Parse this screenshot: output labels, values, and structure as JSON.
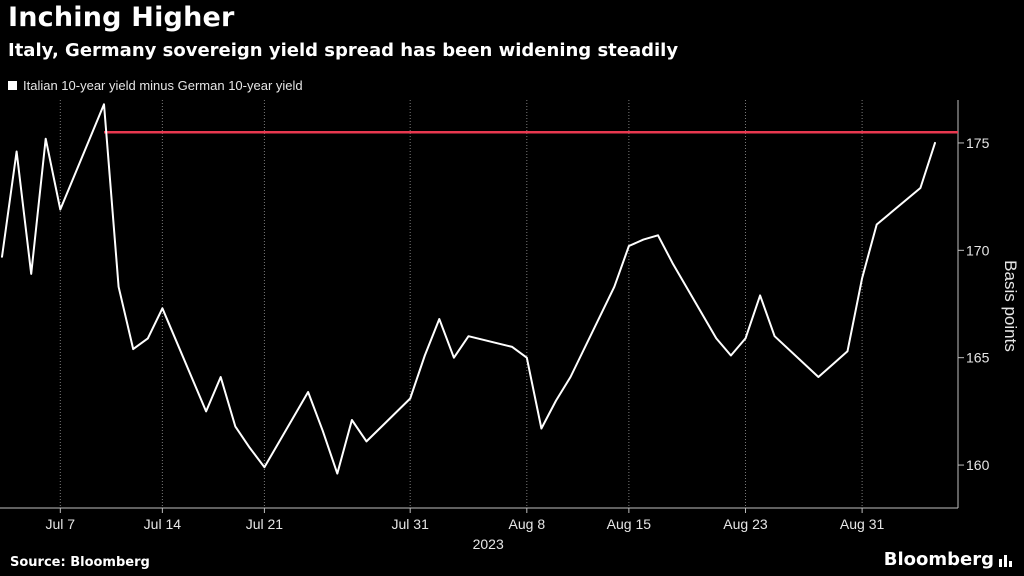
{
  "header": {
    "title": "Inching Higher",
    "subtitle": "Italy, Germany sovereign yield spread has been widening steadily"
  },
  "footer": {
    "source": "Source: Bloomberg",
    "brand": "Bloomberg",
    "brand_icon": "bar-chart-icon"
  },
  "colors": {
    "background": "#000000",
    "line": "#ffffff",
    "reference_line": "#e8384f",
    "grid": "#7a7a7a"
  },
  "chart_data": {
    "type": "line",
    "x_unit": "date",
    "x": [
      "2023-07-03",
      "2023-07-04",
      "2023-07-05",
      "2023-07-06",
      "2023-07-07",
      "2023-07-10",
      "2023-07-11",
      "2023-07-12",
      "2023-07-13",
      "2023-07-14",
      "2023-07-17",
      "2023-07-18",
      "2023-07-19",
      "2023-07-20",
      "2023-07-21",
      "2023-07-24",
      "2023-07-25",
      "2023-07-26",
      "2023-07-27",
      "2023-07-28",
      "2023-07-31",
      "2023-08-01",
      "2023-08-02",
      "2023-08-03",
      "2023-08-04",
      "2023-08-07",
      "2023-08-08",
      "2023-08-09",
      "2023-08-10",
      "2023-08-11",
      "2023-08-14",
      "2023-08-15",
      "2023-08-16",
      "2023-08-17",
      "2023-08-18",
      "2023-08-21",
      "2023-08-22",
      "2023-08-23",
      "2023-08-24",
      "2023-08-25",
      "2023-08-28",
      "2023-08-29",
      "2023-08-30",
      "2023-08-31",
      "2023-09-01",
      "2023-09-04",
      "2023-09-05"
    ],
    "series": [
      {
        "name": "Italian 10-year yield minus German 10-year yield",
        "values": [
          169.7,
          174.6,
          168.9,
          175.2,
          171.9,
          176.8,
          168.3,
          165.4,
          165.9,
          167.3,
          162.5,
          164.1,
          161.8,
          160.8,
          159.9,
          163.4,
          161.6,
          159.6,
          162.1,
          161.1,
          163.1,
          165.1,
          166.8,
          165.0,
          166.0,
          165.5,
          165.0,
          161.7,
          163.0,
          164.1,
          168.3,
          170.2,
          170.5,
          170.7,
          169.4,
          165.9,
          165.1,
          165.9,
          167.9,
          166.0,
          164.1,
          164.7,
          165.3,
          168.7,
          171.2,
          172.9,
          175.0
        ]
      }
    ],
    "reference_line": {
      "y": 175.5,
      "start_x": "2023-07-10",
      "color": "#e8384f"
    },
    "x_ticks": [
      {
        "date": "2023-07-07",
        "label": "Jul 7"
      },
      {
        "date": "2023-07-14",
        "label": "Jul 14"
      },
      {
        "date": "2023-07-21",
        "label": "Jul 21"
      },
      {
        "date": "2023-07-31",
        "label": "Jul 31"
      },
      {
        "date": "2023-08-08",
        "label": "Aug 8"
      },
      {
        "date": "2023-08-15",
        "label": "Aug 15"
      },
      {
        "date": "2023-08-23",
        "label": "Aug 23"
      },
      {
        "date": "2023-08-31",
        "label": "Aug 31"
      }
    ],
    "x_year_label": "2023",
    "y_ticks": [
      160,
      165,
      170,
      175
    ],
    "ylim": [
      158,
      177
    ],
    "ylabel": "Basis points",
    "xlabel": "",
    "y_axis_position": "right",
    "grid": "vertical-dotted",
    "legend": "top-left"
  }
}
